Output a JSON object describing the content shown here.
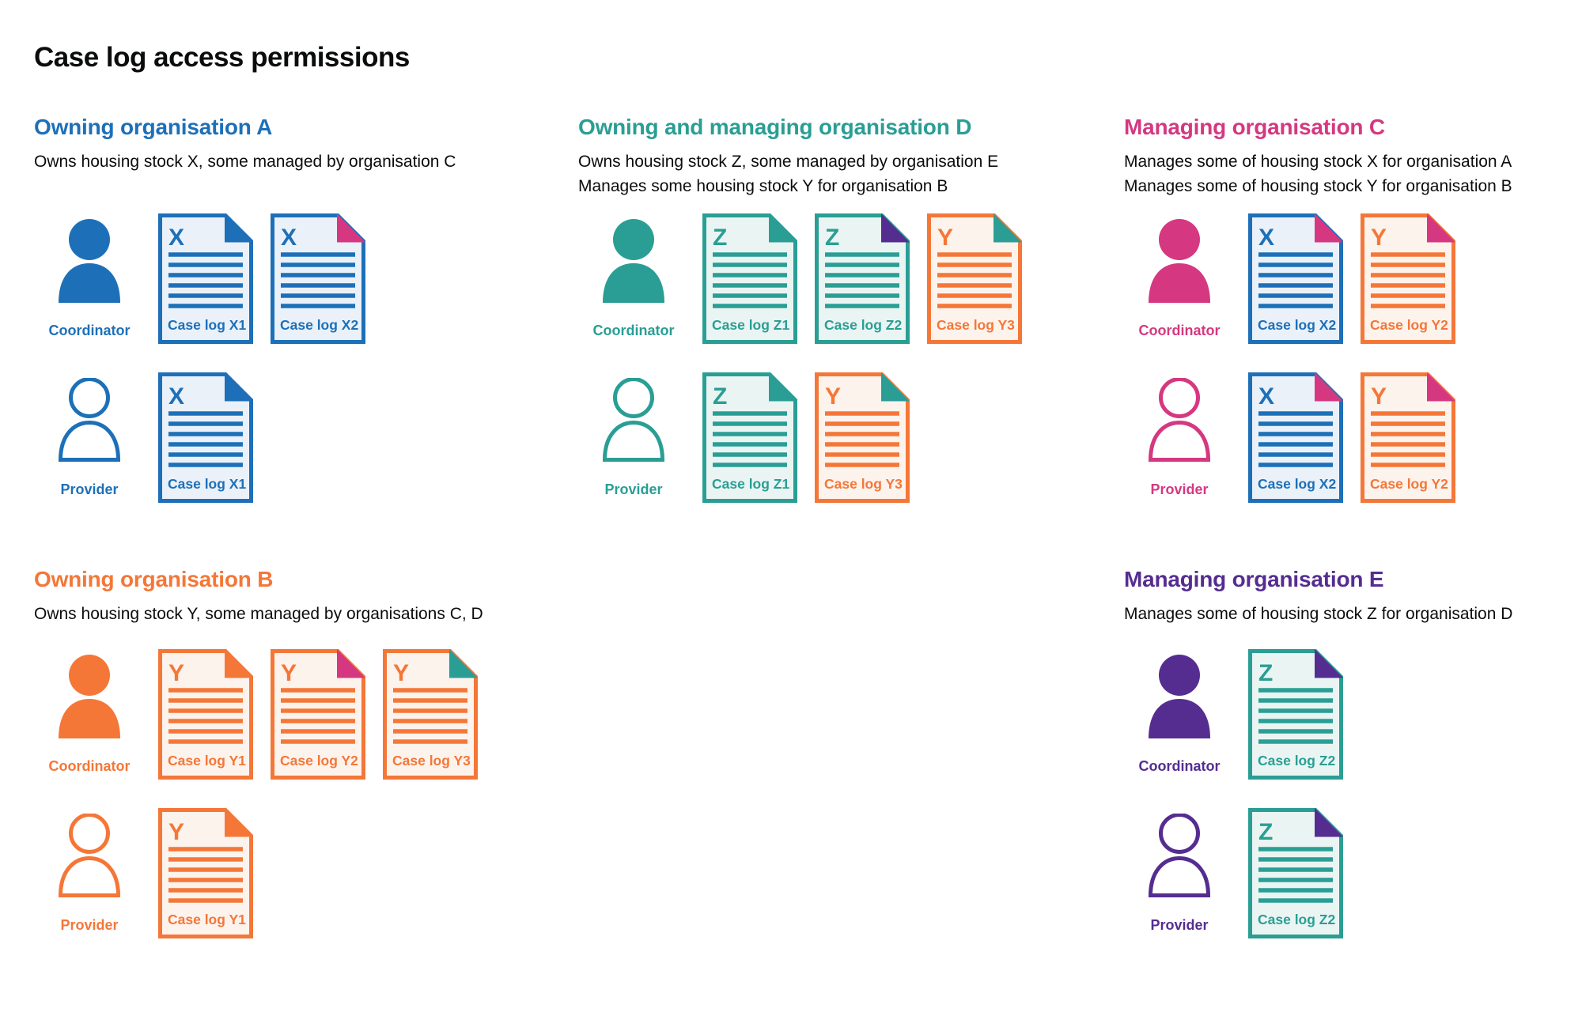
{
  "page_title": "Case log access permissions",
  "colors": {
    "blue": "#1d70b8",
    "teal": "#2a9e94",
    "orange": "#f47738",
    "pink": "#d53880",
    "purple": "#552d91",
    "text": "#0b0c0c",
    "doc_fills": {
      "blue": "#eaf1f9",
      "teal": "#eaf5f3",
      "orange": "#fdf3ed"
    }
  },
  "roles": {
    "coordinator_label": "Coordinator",
    "provider_label": "Provider"
  },
  "sections": [
    {
      "id": "A",
      "heading": "Owning organisation A",
      "color": "blue",
      "description_lines": [
        "Owns housing stock X, some managed by organisation C"
      ],
      "rows": [
        {
          "role": "coordinator",
          "docs": [
            {
              "letter": "X",
              "label": "Case log X1",
              "color": "blue",
              "fold": "blue"
            },
            {
              "letter": "X",
              "label": "Case log X2",
              "color": "blue",
              "fold": "pink"
            }
          ]
        },
        {
          "role": "provider",
          "docs": [
            {
              "letter": "X",
              "label": "Case log X1",
              "color": "blue",
              "fold": "blue"
            }
          ]
        }
      ]
    },
    {
      "id": "D",
      "heading": "Owning and managing organisation D",
      "color": "teal",
      "description_lines": [
        "Owns housing stock Z, some managed by organisation E",
        "Manages some housing stock Y for organisation B"
      ],
      "rows": [
        {
          "role": "coordinator",
          "docs": [
            {
              "letter": "Z",
              "label": "Case log Z1",
              "color": "teal",
              "fold": "teal"
            },
            {
              "letter": "Z",
              "label": "Case log Z2",
              "color": "teal",
              "fold": "purple"
            },
            {
              "letter": "Y",
              "label": "Case log Y3",
              "color": "orange",
              "fold": "teal"
            }
          ]
        },
        {
          "role": "provider",
          "docs": [
            {
              "letter": "Z",
              "label": "Case log Z1",
              "color": "teal",
              "fold": "teal"
            },
            {
              "letter": "Y",
              "label": "Case log Y3",
              "color": "orange",
              "fold": "teal"
            }
          ]
        }
      ]
    },
    {
      "id": "C",
      "heading": "Managing organisation C",
      "color": "pink",
      "description_lines": [
        "Manages some of housing stock X for organisation A",
        "Manages some of housing stock Y for organisation B"
      ],
      "rows": [
        {
          "role": "coordinator",
          "docs": [
            {
              "letter": "X",
              "label": "Case log X2",
              "color": "blue",
              "fold": "pink"
            },
            {
              "letter": "Y",
              "label": "Case log Y2",
              "color": "orange",
              "fold": "pink"
            }
          ]
        },
        {
          "role": "provider",
          "docs": [
            {
              "letter": "X",
              "label": "Case log X2",
              "color": "blue",
              "fold": "pink"
            },
            {
              "letter": "Y",
              "label": "Case log Y2",
              "color": "orange",
              "fold": "pink"
            }
          ]
        }
      ]
    },
    {
      "id": "B",
      "heading": "Owning organisation B",
      "color": "orange",
      "description_lines": [
        "Owns housing stock Y, some managed by organisations C, D"
      ],
      "rows": [
        {
          "role": "coordinator",
          "docs": [
            {
              "letter": "Y",
              "label": "Case log Y1",
              "color": "orange",
              "fold": "orange"
            },
            {
              "letter": "Y",
              "label": "Case log Y2",
              "color": "orange",
              "fold": "pink"
            },
            {
              "letter": "Y",
              "label": "Case log Y3",
              "color": "orange",
              "fold": "teal"
            }
          ]
        },
        {
          "role": "provider",
          "docs": [
            {
              "letter": "Y",
              "label": "Case log Y1",
              "color": "orange",
              "fold": "orange"
            }
          ]
        }
      ]
    },
    {
      "id": "E",
      "heading": "Managing organisation E",
      "color": "purple",
      "description_lines": [
        "Manages some of housing stock Z for organisation D"
      ],
      "rows": [
        {
          "role": "coordinator",
          "docs": [
            {
              "letter": "Z",
              "label": "Case log Z2",
              "color": "teal",
              "fold": "purple"
            }
          ]
        },
        {
          "role": "provider",
          "docs": [
            {
              "letter": "Z",
              "label": "Case log Z2",
              "color": "teal",
              "fold": "purple"
            }
          ]
        }
      ]
    }
  ]
}
